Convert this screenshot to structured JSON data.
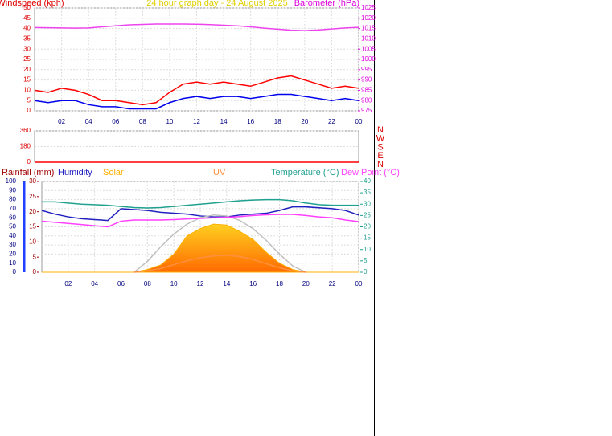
{
  "chart_data": [
    {
      "type": "line",
      "title": "24 hour graph day - 24 August 2025",
      "ylabel": "Windspeed (kph)",
      "y2label": "Barometer (hPa)",
      "x": [
        0,
        1,
        2,
        3,
        4,
        5,
        6,
        7,
        8,
        9,
        10,
        11,
        12,
        13,
        14,
        15,
        16,
        17,
        18,
        19,
        20,
        21,
        22,
        23,
        24
      ],
      "xlim": [
        0,
        24
      ],
      "xticks": [
        {
          "value": 2,
          "label": "02"
        },
        {
          "value": 4,
          "label": "04"
        },
        {
          "value": 6,
          "label": "06"
        },
        {
          "value": 8,
          "label": "08"
        },
        {
          "value": 10,
          "label": "10"
        },
        12,
        14,
        16,
        18,
        20,
        22,
        {
          "value": 24,
          "label": "00"
        }
      ],
      "ylim": [
        0,
        50
      ],
      "yticks": [
        0,
        5,
        10,
        15,
        20,
        25,
        30,
        35,
        40,
        45,
        50
      ],
      "y2lim": [
        975,
        1025
      ],
      "y2ticks": [
        975,
        980,
        985,
        990,
        995,
        1000,
        1005,
        1010,
        1015,
        1020,
        1025
      ],
      "grid": true,
      "series": [
        {
          "color": "#ff0000",
          "axis": "y",
          "values": [
            10,
            9,
            11,
            10,
            8,
            5,
            5,
            4,
            3,
            4,
            9,
            13,
            14,
            13,
            14,
            13,
            12,
            14,
            16,
            17,
            15,
            13,
            11,
            12,
            11
          ]
        },
        {
          "color": "#0000ee",
          "axis": "y",
          "values": [
            5,
            4,
            5,
            5,
            3,
            2,
            2,
            1,
            1,
            1,
            4,
            6,
            7,
            6,
            7,
            7,
            6,
            7,
            8,
            8,
            7,
            6,
            5,
            6,
            5
          ]
        },
        {
          "color": "#ee44ee",
          "axis": "y2",
          "values": [
            1015.5,
            1015.4,
            1015.3,
            1015.2,
            1015.3,
            1015.8,
            1016.3,
            1016.8,
            1017,
            1017.2,
            1017.2,
            1017.2,
            1017.1,
            1016.9,
            1016.6,
            1016.3,
            1015.8,
            1015.2,
            1014.7,
            1014.2,
            1014,
            1014.3,
            1014.8,
            1015.3,
            1015.6
          ]
        }
      ]
    },
    {
      "type": "line",
      "x": [
        0,
        1,
        2,
        3,
        4,
        5,
        6,
        7,
        8,
        9,
        10,
        11,
        12,
        13,
        14,
        15,
        16,
        17,
        18,
        19,
        20,
        21,
        22,
        23,
        24
      ],
      "xlim": [
        0,
        24
      ],
      "ylim": [
        0,
        360
      ],
      "yticks": [
        0,
        180,
        360
      ],
      "compass_labels": [
        "N",
        "W",
        "S",
        "E",
        "N"
      ],
      "grid": true,
      "series": [
        {
          "color": "#ff0000",
          "axis": "y",
          "values": [
            0,
            0,
            0,
            0,
            0,
            0,
            0,
            0,
            0,
            0,
            0,
            0,
            0,
            0,
            0,
            0,
            0,
            0,
            0,
            0,
            0,
            0,
            0,
            0,
            0
          ]
        }
      ]
    },
    {
      "type": "line",
      "y3label": "Rainfall (mm)",
      "x": [
        0,
        1,
        2,
        3,
        4,
        5,
        6,
        7,
        8,
        9,
        10,
        11,
        12,
        13,
        14,
        15,
        16,
        17,
        18,
        19,
        20,
        21,
        22,
        23,
        24
      ],
      "xlim": [
        0,
        24
      ],
      "xticks": [
        {
          "value": 2,
          "label": "02"
        },
        {
          "value": 4,
          "label": "04"
        },
        {
          "value": 6,
          "label": "06"
        },
        {
          "value": 8,
          "label": "08"
        },
        10,
        12,
        14,
        16,
        18,
        20,
        22,
        {
          "value": 24,
          "label": "00"
        }
      ],
      "ylim": [
        0,
        100
      ],
      "yticks": [
        0,
        10,
        20,
        30,
        40,
        50,
        60,
        70,
        80,
        90,
        100
      ],
      "y3lim": [
        0,
        30
      ],
      "y3ticks": [
        0,
        5,
        10,
        15,
        20,
        25,
        30
      ],
      "y2lim": [
        0,
        40
      ],
      "y2ticks": [
        0,
        5,
        10,
        15,
        20,
        25,
        30,
        35,
        40
      ],
      "grid": true,
      "series": [
        {
          "name": "Humidity",
          "color": "#2020c0",
          "axis": "y",
          "style": "line",
          "values": [
            68,
            64,
            61,
            59,
            58,
            57,
            70,
            69,
            68,
            66,
            65,
            64,
            62,
            61,
            61,
            63,
            64,
            65,
            68,
            72,
            72,
            71,
            70,
            68,
            63
          ]
        },
        {
          "name": "Solar",
          "color": "#ffb000",
          "axis": "y",
          "style": "area",
          "values": [
            0,
            0,
            0,
            0,
            0,
            0,
            0,
            0,
            3,
            8,
            20,
            40,
            48,
            53,
            52,
            45,
            36,
            22,
            10,
            3,
            0,
            0,
            0,
            0,
            0
          ]
        },
        {
          "color": "#c0c0c0",
          "axis": "y",
          "style": "line",
          "values": [
            null,
            null,
            null,
            null,
            null,
            null,
            null,
            0,
            12,
            28,
            42,
            53,
            60,
            63,
            62,
            57,
            48,
            35,
            20,
            7,
            0,
            null,
            null,
            null,
            null
          ]
        },
        {
          "name": "UV",
          "color": "#ff9040",
          "axis": "y3",
          "style": "line",
          "values": [
            null,
            null,
            null,
            null,
            null,
            null,
            null,
            0,
            0.5,
            1.2,
            2.5,
            3.8,
            4.8,
            5.4,
            5.6,
            5.2,
            4.2,
            2.8,
            1.5,
            0.5,
            0,
            null,
            null,
            null,
            null
          ]
        },
        {
          "name": "Temperature (°C)",
          "color": "#20a090",
          "axis": "y2",
          "style": "line",
          "values": [
            31,
            31,
            30.5,
            30,
            29.8,
            29.5,
            29,
            28.5,
            28.3,
            28.5,
            29,
            29.5,
            30,
            30.5,
            31,
            31.5,
            31.8,
            32,
            32,
            31.5,
            30.5,
            29.8,
            29.5,
            29.5,
            29.5
          ]
        },
        {
          "name": "Dew Point (°C)",
          "color": "#ff40ff",
          "axis": "y2",
          "style": "line",
          "values": [
            22.5,
            22,
            21.5,
            21,
            20.5,
            20,
            22.5,
            23,
            23,
            23,
            23.2,
            23.5,
            23.7,
            24,
            24.2,
            24.5,
            25,
            25.3,
            25.5,
            25.5,
            25,
            24.4,
            24,
            23,
            22.3
          ]
        }
      ]
    }
  ]
}
